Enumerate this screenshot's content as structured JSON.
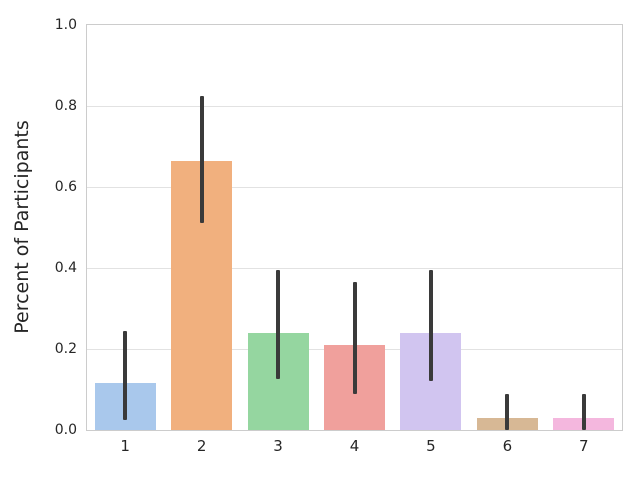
{
  "chart_data": {
    "type": "bar",
    "title": "",
    "xlabel": "",
    "ylabel": "Percent of Participants",
    "categories": [
      "1",
      "2",
      "3",
      "4",
      "5",
      "6",
      "7"
    ],
    "values": [
      0.115,
      0.665,
      0.24,
      0.21,
      0.24,
      0.03,
      0.03
    ],
    "error_low": [
      0.025,
      0.51,
      0.125,
      0.09,
      0.12,
      0.0,
      0.0
    ],
    "error_high": [
      0.245,
      0.825,
      0.395,
      0.365,
      0.395,
      0.09,
      0.09
    ],
    "bar_colors": [
      "#a9c8ec",
      "#f1b07e",
      "#95d6a0",
      "#f0a09c",
      "#d1c5f0",
      "#d7b895",
      "#f4b7de"
    ],
    "y_ticks": [
      0.0,
      0.2,
      0.4,
      0.6,
      0.8,
      1.0
    ],
    "y_tick_labels": [
      "0.0",
      "0.2",
      "0.4",
      "0.6",
      "0.8",
      "1.0"
    ],
    "ylim": [
      0.0,
      1.0
    ],
    "grid": true,
    "legend": null,
    "bar_rel_width": 0.8,
    "error_color": "#3a3a3a",
    "grid_color": "#e2e2e2",
    "spine_color": "#cccccc",
    "text_color": "#262626",
    "background_color": "#ffffff"
  }
}
